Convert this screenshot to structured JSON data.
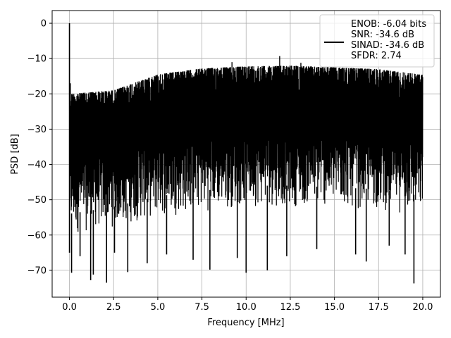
{
  "chart_data": {
    "type": "line",
    "title": "",
    "xlabel": "Frequency [MHz]",
    "ylabel": "PSD [dB]",
    "xlim": [
      -0.98,
      21.0
    ],
    "ylim": [
      -77.6,
      3.6
    ],
    "xticks": [
      0.0,
      2.5,
      5.0,
      7.5,
      10.0,
      12.5,
      15.0,
      17.5,
      20.0
    ],
    "xtick_labels": [
      "0.0",
      "2.5",
      "5.0",
      "7.5",
      "10.0",
      "12.5",
      "15.0",
      "17.5",
      "20.0"
    ],
    "yticks": [
      0,
      -10,
      -20,
      -30,
      -40,
      -50,
      -60,
      -70
    ],
    "ytick_labels": [
      "0",
      "−10",
      "−20",
      "−30",
      "−40",
      "−50",
      "−60",
      "−70"
    ],
    "grid": true,
    "legend_position": "top-right",
    "line_color": "#000000",
    "series": [
      {
        "legend_lines": [
          "ENOB: -6.04 bits",
          "SNR: -34.6 dB",
          "SINAD: -34.6 dB",
          "SFDR: 2.74"
        ],
        "x_range": [
          0.0,
          20.0
        ],
        "peak": {
          "x": 0.0,
          "y": 0.0
        },
        "upper_envelope": [
          {
            "x": 0.0,
            "y": -20.0
          },
          {
            "x": 2.5,
            "y": -19.0
          },
          {
            "x": 5.0,
            "y": -14.5
          },
          {
            "x": 7.5,
            "y": -12.8
          },
          {
            "x": 10.0,
            "y": -12.2
          },
          {
            "x": 12.5,
            "y": -12.0
          },
          {
            "x": 15.0,
            "y": -12.5
          },
          {
            "x": 17.5,
            "y": -13.0
          },
          {
            "x": 20.0,
            "y": -14.6
          }
        ],
        "lower_envelope": [
          {
            "x": 0.0,
            "y": -60.0
          },
          {
            "x": 2.5,
            "y": -58.0
          },
          {
            "x": 5.0,
            "y": -55.0
          },
          {
            "x": 7.5,
            "y": -53.5
          },
          {
            "x": 10.0,
            "y": -52.0
          },
          {
            "x": 12.5,
            "y": -52.0
          },
          {
            "x": 15.0,
            "y": -52.5
          },
          {
            "x": 17.5,
            "y": -53.0
          },
          {
            "x": 20.0,
            "y": -55.0
          }
        ],
        "deep_dips": [
          {
            "x": 0.12,
            "y": -70.7
          },
          {
            "x": 0.6,
            "y": -66.0
          },
          {
            "x": 1.2,
            "y": -72.8
          },
          {
            "x": 1.35,
            "y": -71.2
          },
          {
            "x": 2.1,
            "y": -73.5
          },
          {
            "x": 2.55,
            "y": -65.0
          },
          {
            "x": 3.3,
            "y": -70.5
          },
          {
            "x": 4.4,
            "y": -68.0
          },
          {
            "x": 5.5,
            "y": -65.5
          },
          {
            "x": 7.0,
            "y": -67.0
          },
          {
            "x": 7.95,
            "y": -69.8
          },
          {
            "x": 9.5,
            "y": -66.5
          },
          {
            "x": 10.0,
            "y": -70.7
          },
          {
            "x": 11.2,
            "y": -70.0
          },
          {
            "x": 12.3,
            "y": -66.0
          },
          {
            "x": 14.0,
            "y": -64.0
          },
          {
            "x": 16.2,
            "y": -65.5
          },
          {
            "x": 16.8,
            "y": -67.5
          },
          {
            "x": 18.1,
            "y": -63.0
          },
          {
            "x": 19.0,
            "y": -65.5
          },
          {
            "x": 19.5,
            "y": -73.7
          }
        ],
        "tall_spikes": [
          {
            "x": 0.05,
            "y": -17.0
          },
          {
            "x": 11.9,
            "y": -9.3
          },
          {
            "x": 9.2,
            "y": -11.0
          },
          {
            "x": 13.1,
            "y": -11.2
          }
        ]
      }
    ]
  }
}
